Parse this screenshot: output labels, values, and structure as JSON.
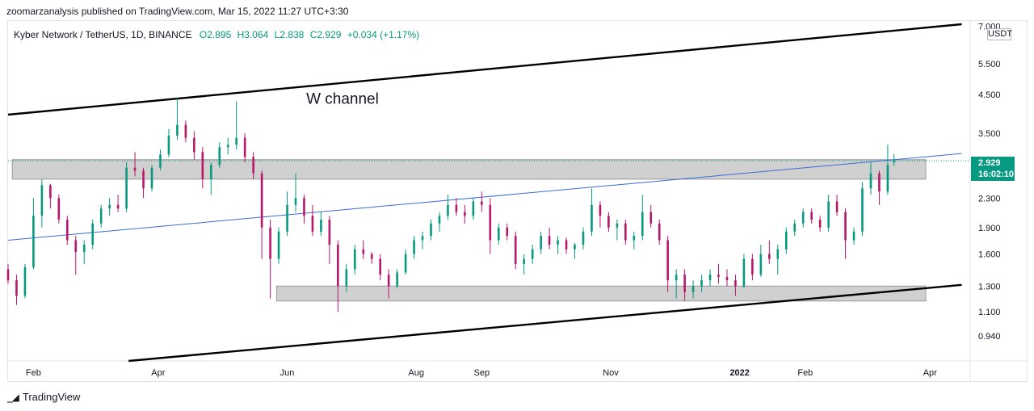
{
  "header": {
    "publisher": "zoomarzanalysis published on TradingView.com, Mar 15, 2022 11:27 UTC+3:30"
  },
  "legend": {
    "symbol": "Kyber Network / TetherUS, 1D, BINANCE",
    "open": "O2.895",
    "high": "H3.064",
    "low": "L2.838",
    "close": "C2.929",
    "change": "+0.034 (+1.17%)"
  },
  "currency": "USDT",
  "last_price": {
    "price": "2.929",
    "countdown": "16:02:10"
  },
  "annotation": "W channel",
  "footer": {
    "brand": "TradingView"
  },
  "colors": {
    "up": "#089981",
    "down": "#b8176a",
    "trendline": "#3a6bd8",
    "zone": "#c8c8c8",
    "channel": "#000000"
  },
  "chart_data": {
    "type": "candlestick",
    "y_scale": "log",
    "y_ticks": [
      "7.000",
      "5.500",
      "4.500",
      "3.500",
      "2.300",
      "1.900",
      "1.600",
      "1.300",
      "1.100",
      "0.940"
    ],
    "x_ticks": [
      "Feb",
      "Apr",
      "Jun",
      "Aug",
      "Sep",
      "Nov",
      "2022",
      "Feb",
      "Apr"
    ],
    "x_range": [
      "2021-01-20",
      "2022-04-20"
    ],
    "annotation": {
      "text": "W channel",
      "x": "2021-06-10",
      "y": 4.4
    },
    "resistance_zone": {
      "from": "2021-01-22",
      "to": "2022-03-30",
      "low": 2.6,
      "high": 2.95
    },
    "support_zone": {
      "from": "2021-05-27",
      "to": "2022-03-30",
      "low": 1.18,
      "high": 1.3
    },
    "channel_upper": [
      [
        "2021-01-20",
        3.95
      ],
      [
        "2022-04-16",
        7.1
      ]
    ],
    "channel_lower": [
      [
        "2021-03-18",
        0.8
      ],
      [
        "2022-04-16",
        1.31
      ]
    ],
    "trend_line": [
      [
        "2021-01-20",
        1.75
      ],
      [
        "2022-04-16",
        3.07
      ]
    ],
    "last_close": 2.929,
    "candles": [
      [
        "2021-01-20",
        1.45,
        1.5,
        1.32,
        1.35
      ],
      [
        "2021-01-24",
        1.35,
        1.4,
        1.15,
        1.22
      ],
      [
        "2021-01-28",
        1.22,
        1.5,
        1.2,
        1.47
      ],
      [
        "2021-02-01",
        1.47,
        2.3,
        1.45,
        2.05
      ],
      [
        "2021-02-05",
        2.05,
        2.6,
        1.9,
        2.5
      ],
      [
        "2021-02-09",
        2.5,
        2.52,
        2.15,
        2.3
      ],
      [
        "2021-02-13",
        2.3,
        2.35,
        1.95,
        2.0
      ],
      [
        "2021-02-17",
        2.0,
        2.05,
        1.7,
        1.75
      ],
      [
        "2021-02-21",
        1.75,
        1.8,
        1.4,
        1.62
      ],
      [
        "2021-02-25",
        1.62,
        1.75,
        1.5,
        1.7
      ],
      [
        "2021-03-01",
        1.7,
        2.0,
        1.65,
        1.95
      ],
      [
        "2021-03-05",
        1.95,
        2.2,
        1.9,
        2.15
      ],
      [
        "2021-03-09",
        2.15,
        2.3,
        2.05,
        2.2
      ],
      [
        "2021-03-13",
        2.2,
        2.35,
        2.1,
        2.15
      ],
      [
        "2021-03-17",
        2.15,
        2.9,
        2.1,
        2.8
      ],
      [
        "2021-03-21",
        2.8,
        3.1,
        2.65,
        2.75
      ],
      [
        "2021-03-25",
        2.75,
        2.8,
        2.3,
        2.45
      ],
      [
        "2021-03-29",
        2.45,
        2.85,
        2.4,
        2.8
      ],
      [
        "2021-04-02",
        2.8,
        3.15,
        2.75,
        3.05
      ],
      [
        "2021-04-06",
        3.05,
        3.6,
        3.0,
        3.45
      ],
      [
        "2021-04-10",
        3.45,
        4.4,
        3.35,
        3.7
      ],
      [
        "2021-04-14",
        3.7,
        3.8,
        3.3,
        3.4
      ],
      [
        "2021-04-18",
        3.4,
        3.55,
        2.95,
        3.1
      ],
      [
        "2021-04-22",
        3.1,
        3.2,
        2.45,
        2.6
      ],
      [
        "2021-04-26",
        2.6,
        2.9,
        2.35,
        2.85
      ],
      [
        "2021-04-30",
        2.85,
        3.3,
        2.8,
        3.2
      ],
      [
        "2021-05-04",
        3.2,
        3.4,
        3.05,
        3.25
      ],
      [
        "2021-05-08",
        3.25,
        4.3,
        3.15,
        3.4
      ],
      [
        "2021-05-12",
        3.4,
        3.5,
        2.9,
        3.0
      ],
      [
        "2021-05-16",
        3.0,
        3.1,
        2.6,
        2.7
      ],
      [
        "2021-05-20",
        2.7,
        2.75,
        1.55,
        1.9
      ],
      [
        "2021-05-24",
        1.9,
        2.0,
        1.2,
        1.55
      ],
      [
        "2021-05-28",
        1.55,
        1.9,
        1.5,
        1.85
      ],
      [
        "2021-06-01",
        1.85,
        2.4,
        1.8,
        2.2
      ],
      [
        "2021-06-05",
        2.2,
        2.7,
        2.1,
        2.3
      ],
      [
        "2021-06-09",
        2.3,
        2.35,
        1.95,
        2.05
      ],
      [
        "2021-06-13",
        2.05,
        2.2,
        1.8,
        1.85
      ],
      [
        "2021-06-17",
        1.85,
        2.1,
        1.8,
        2.0
      ],
      [
        "2021-06-21",
        2.0,
        2.05,
        1.5,
        1.7
      ],
      [
        "2021-06-25",
        1.7,
        1.75,
        1.1,
        1.3
      ],
      [
        "2021-06-29",
        1.3,
        1.5,
        1.25,
        1.45
      ],
      [
        "2021-07-03",
        1.45,
        1.7,
        1.4,
        1.65
      ],
      [
        "2021-07-07",
        1.65,
        1.75,
        1.55,
        1.6
      ],
      [
        "2021-07-11",
        1.6,
        1.62,
        1.5,
        1.55
      ],
      [
        "2021-07-15",
        1.55,
        1.6,
        1.35,
        1.4
      ],
      [
        "2021-07-19",
        1.4,
        1.45,
        1.2,
        1.3
      ],
      [
        "2021-07-23",
        1.3,
        1.45,
        1.28,
        1.42
      ],
      [
        "2021-07-27",
        1.42,
        1.65,
        1.4,
        1.6
      ],
      [
        "2021-07-31",
        1.6,
        1.8,
        1.55,
        1.75
      ],
      [
        "2021-08-04",
        1.75,
        1.85,
        1.65,
        1.8
      ],
      [
        "2021-08-08",
        1.8,
        2.0,
        1.75,
        1.95
      ],
      [
        "2021-08-12",
        1.95,
        2.1,
        1.85,
        2.05
      ],
      [
        "2021-08-16",
        2.05,
        2.35,
        2.0,
        2.2
      ],
      [
        "2021-08-20",
        2.2,
        2.3,
        2.05,
        2.1
      ],
      [
        "2021-08-24",
        2.1,
        2.2,
        1.95,
        2.05
      ],
      [
        "2021-08-28",
        2.05,
        2.3,
        2.0,
        2.25
      ],
      [
        "2021-09-01",
        2.25,
        2.4,
        2.1,
        2.2
      ],
      [
        "2021-09-05",
        2.2,
        2.3,
        1.6,
        1.75
      ],
      [
        "2021-09-09",
        1.75,
        1.95,
        1.7,
        1.9
      ],
      [
        "2021-09-13",
        1.9,
        1.95,
        1.75,
        1.8
      ],
      [
        "2021-09-17",
        1.8,
        1.85,
        1.45,
        1.5
      ],
      [
        "2021-09-21",
        1.5,
        1.6,
        1.4,
        1.55
      ],
      [
        "2021-09-25",
        1.55,
        1.7,
        1.5,
        1.65
      ],
      [
        "2021-09-29",
        1.65,
        1.85,
        1.6,
        1.8
      ],
      [
        "2021-10-03",
        1.8,
        1.9,
        1.65,
        1.7
      ],
      [
        "2021-10-07",
        1.7,
        1.8,
        1.6,
        1.75
      ],
      [
        "2021-10-11",
        1.75,
        1.78,
        1.6,
        1.65
      ],
      [
        "2021-10-15",
        1.65,
        1.72,
        1.55,
        1.7
      ],
      [
        "2021-10-19",
        1.7,
        1.9,
        1.65,
        1.85
      ],
      [
        "2021-10-23",
        1.85,
        2.45,
        1.8,
        2.2
      ],
      [
        "2021-10-27",
        2.2,
        2.25,
        1.9,
        2.05
      ],
      [
        "2021-10-31",
        2.05,
        2.1,
        1.85,
        1.9
      ],
      [
        "2021-11-04",
        1.9,
        2.0,
        1.75,
        1.95
      ],
      [
        "2021-11-08",
        1.95,
        2.0,
        1.7,
        1.75
      ],
      [
        "2021-11-12",
        1.75,
        1.85,
        1.65,
        1.8
      ],
      [
        "2021-11-16",
        1.8,
        2.35,
        1.75,
        2.1
      ],
      [
        "2021-11-20",
        2.1,
        2.2,
        1.9,
        1.95
      ],
      [
        "2021-11-24",
        1.95,
        2.0,
        1.7,
        1.75
      ],
      [
        "2021-11-28",
        1.75,
        1.8,
        1.25,
        1.35
      ],
      [
        "2021-12-02",
        1.35,
        1.45,
        1.2,
        1.4
      ],
      [
        "2021-12-06",
        1.4,
        1.45,
        1.18,
        1.25
      ],
      [
        "2021-12-10",
        1.25,
        1.35,
        1.2,
        1.3
      ],
      [
        "2021-12-14",
        1.3,
        1.4,
        1.25,
        1.35
      ],
      [
        "2021-12-18",
        1.35,
        1.45,
        1.3,
        1.4
      ],
      [
        "2021-12-22",
        1.4,
        1.5,
        1.32,
        1.38
      ],
      [
        "2021-12-26",
        1.38,
        1.45,
        1.3,
        1.35
      ],
      [
        "2021-12-30",
        1.35,
        1.4,
        1.22,
        1.3
      ],
      [
        "2022-01-03",
        1.3,
        1.6,
        1.28,
        1.55
      ],
      [
        "2022-01-07",
        1.55,
        1.6,
        1.35,
        1.4
      ],
      [
        "2022-01-11",
        1.4,
        1.7,
        1.38,
        1.6
      ],
      [
        "2022-01-15",
        1.6,
        1.75,
        1.5,
        1.55
      ],
      [
        "2022-01-19",
        1.55,
        1.7,
        1.4,
        1.65
      ],
      [
        "2022-01-23",
        1.65,
        1.9,
        1.6,
        1.85
      ],
      [
        "2022-01-27",
        1.85,
        2.0,
        1.8,
        1.95
      ],
      [
        "2022-01-31",
        1.95,
        2.15,
        1.9,
        2.1
      ],
      [
        "2022-02-04",
        2.1,
        2.15,
        1.95,
        2.0
      ],
      [
        "2022-02-08",
        2.0,
        2.05,
        1.85,
        1.9
      ],
      [
        "2022-02-12",
        1.9,
        2.35,
        1.85,
        2.25
      ],
      [
        "2022-02-16",
        2.25,
        2.35,
        2.05,
        2.1
      ],
      [
        "2022-02-20",
        2.1,
        2.15,
        1.55,
        1.75
      ],
      [
        "2022-02-24",
        1.75,
        1.9,
        1.7,
        1.85
      ],
      [
        "2022-02-28",
        1.85,
        2.55,
        1.8,
        2.45
      ],
      [
        "2022-03-04",
        2.45,
        2.9,
        2.35,
        2.7
      ],
      [
        "2022-03-08",
        2.7,
        2.75,
        2.2,
        2.4
      ],
      [
        "2022-03-12",
        2.4,
        3.25,
        2.35,
        2.85
      ],
      [
        "2022-03-15",
        2.895,
        3.064,
        2.838,
        2.929
      ]
    ]
  }
}
